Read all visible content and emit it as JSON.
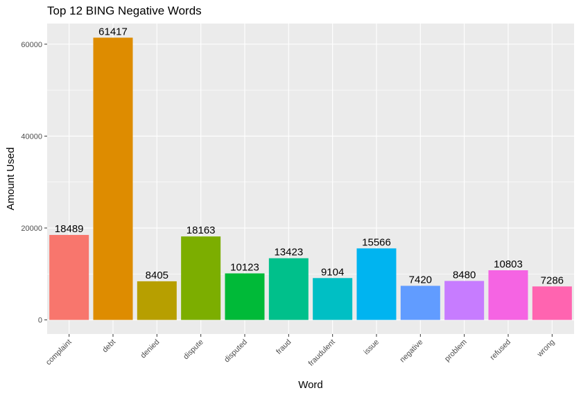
{
  "chart_data": {
    "type": "bar",
    "title": "Top 12 BING Negative Words",
    "xlabel": "Word",
    "ylabel": "Amount Used",
    "categories": [
      "complaint",
      "debt",
      "denied",
      "dispute",
      "disputed",
      "fraud",
      "fraudulent",
      "issue",
      "negative",
      "problem",
      "refused",
      "wrong"
    ],
    "values": [
      18489,
      61417,
      8405,
      18163,
      10123,
      13423,
      9104,
      15566,
      7420,
      8480,
      10803,
      7286
    ],
    "colors": [
      "#F8766D",
      "#DE8C00",
      "#B79F00",
      "#7CAE00",
      "#00BA38",
      "#00C08B",
      "#00BFC4",
      "#00B4F0",
      "#619CFF",
      "#C77CFF",
      "#F564E3",
      "#FF64B0"
    ],
    "yticks": [
      0,
      20000,
      40000,
      60000
    ],
    "ylim": [
      -3070,
      64488
    ],
    "grid": true,
    "legend": "none",
    "data_labels": true
  }
}
